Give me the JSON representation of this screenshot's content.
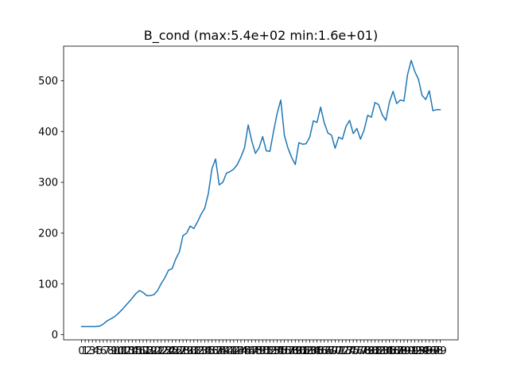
{
  "chart_data": {
    "type": "line",
    "title": "B_cond (max:5.4e+02 min:1.6e+01)",
    "xlabel": "",
    "ylabel": "",
    "xlim": [
      -4.95,
      103.95
    ],
    "ylim": [
      -10,
      568
    ],
    "yticks": [
      0,
      100,
      200,
      300,
      400,
      500
    ],
    "xticks": [
      0,
      1,
      2,
      3,
      4,
      5,
      6,
      7,
      8,
      9,
      10,
      11,
      12,
      13,
      14,
      15,
      16,
      17,
      18,
      19,
      20,
      21,
      22,
      23,
      24,
      25,
      26,
      27,
      28,
      29,
      30,
      31,
      32,
      33,
      34,
      35,
      36,
      37,
      38,
      39,
      40,
      41,
      42,
      43,
      44,
      45,
      46,
      47,
      48,
      49,
      50,
      51,
      52,
      53,
      54,
      55,
      56,
      57,
      58,
      59,
      60,
      61,
      62,
      63,
      64,
      65,
      66,
      67,
      68,
      69,
      70,
      71,
      72,
      73,
      74,
      75,
      76,
      77,
      78,
      79,
      80,
      81,
      82,
      83,
      84,
      85,
      86,
      87,
      88,
      89,
      90,
      91,
      92,
      93,
      94,
      95,
      96,
      97,
      98,
      99
    ],
    "grid": false,
    "legend": "none",
    "series_color": "#1f77b4",
    "series": [
      {
        "x": [
          0,
          1,
          2,
          3,
          4,
          5,
          6,
          7,
          8,
          9,
          10,
          11,
          12,
          13,
          14,
          15,
          16,
          17,
          18,
          19,
          20,
          21,
          22,
          23,
          24,
          25,
          26,
          27,
          28,
          29,
          30,
          31,
          32,
          33,
          34,
          35,
          36,
          37,
          38,
          39,
          40,
          41,
          42,
          43,
          44,
          45,
          46,
          47,
          48,
          49,
          50,
          51,
          52,
          53,
          54,
          55,
          56,
          57,
          58,
          59,
          60,
          61,
          62,
          63,
          64,
          65,
          66,
          67,
          68,
          69,
          70,
          71,
          72,
          73,
          74,
          75,
          76,
          77,
          78,
          79,
          80,
          81,
          82,
          83,
          84,
          85,
          86,
          87,
          88,
          89,
          90,
          91,
          92,
          93,
          94,
          95,
          96,
          97,
          98,
          99
        ],
        "values": [
          16,
          16,
          16,
          16,
          16,
          17,
          21,
          27,
          31,
          35,
          41,
          48,
          56,
          64,
          72,
          81,
          87,
          83,
          77,
          77,
          79,
          87,
          101,
          112,
          127,
          130,
          149,
          163,
          195,
          200,
          214,
          209,
          222,
          237,
          249,
          278,
          327,
          346,
          295,
          300,
          318,
          321,
          326,
          335,
          350,
          368,
          413,
          381,
          357,
          368,
          390,
          362,
          361,
          400,
          436,
          462,
          392,
          367,
          349,
          335,
          378,
          375,
          376,
          389,
          421,
          418,
          448,
          417,
          397,
          393,
          367,
          389,
          385,
          410,
          422,
          396,
          406,
          385,
          403,
          432,
          428,
          457,
          453,
          433,
          422,
          458,
          479,
          455,
          462,
          460,
          512,
          540,
          518,
          503,
          471,
          463,
          480,
          441,
          443,
          443
        ]
      }
    ]
  }
}
